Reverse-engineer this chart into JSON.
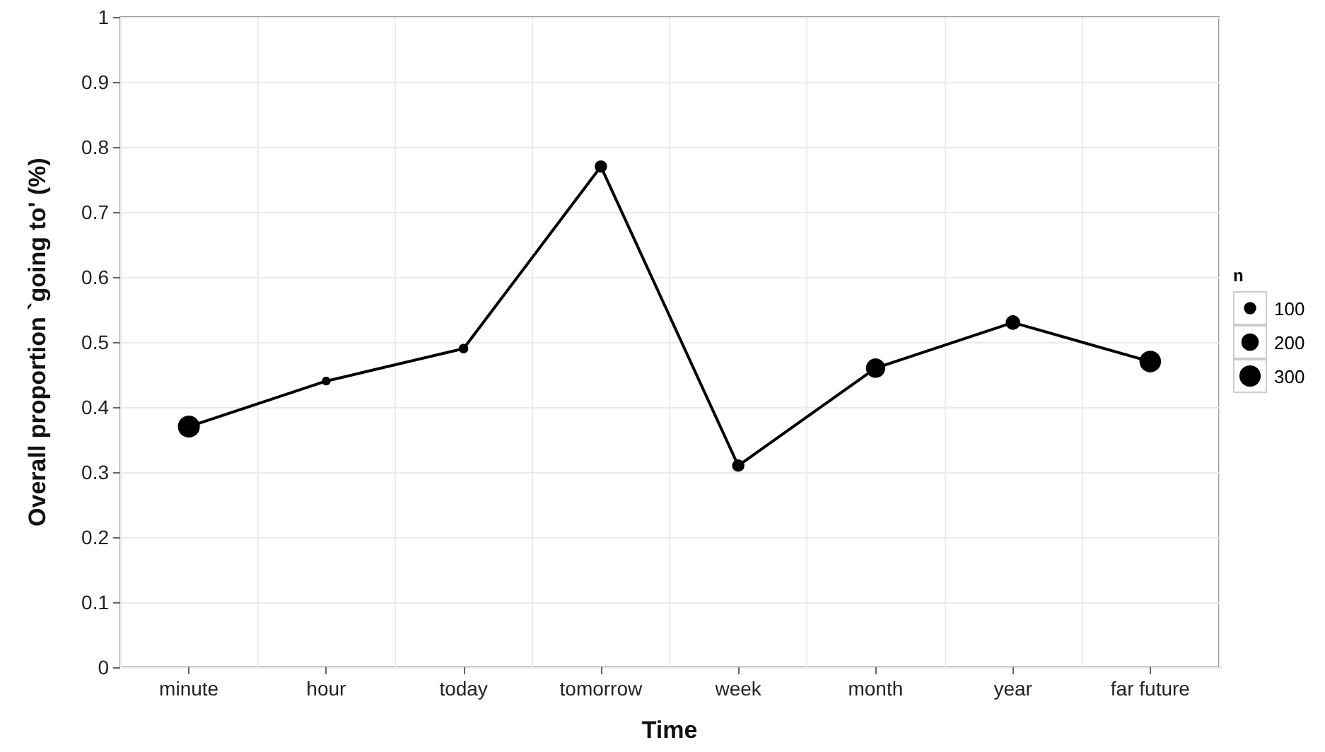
{
  "chart_data": {
    "type": "bubble",
    "xlabel": "Time",
    "ylabel": "Overall proportion `going to' (%)",
    "legend_title": "n",
    "categories": [
      "minute",
      "hour",
      "today",
      "tomorrow",
      "week",
      "month",
      "year",
      "far future"
    ],
    "series": [
      {
        "color": "#000000",
        "values": [
          0.37,
          0.44,
          0.49,
          0.77,
          0.31,
          0.46,
          0.53,
          0.47
        ],
        "sizes": [
          320,
          50,
          60,
          100,
          100,
          250,
          140,
          310
        ]
      },
      {
        "type": "line",
        "color": "#000000",
        "values": [
          0.37,
          0.44,
          0.49,
          0.77,
          0.31,
          0.46,
          0.53,
          0.47
        ],
        "marker": "none",
        "line_style": "solid"
      }
    ],
    "size_legend": [
      100,
      200,
      300
    ],
    "ylim": [
      0,
      1
    ],
    "yticks": [
      0,
      0.1,
      0.2,
      0.3,
      0.4,
      0.5,
      0.6,
      0.7,
      0.8,
      0.9,
      1
    ],
    "grid": true,
    "marker": "circle"
  }
}
